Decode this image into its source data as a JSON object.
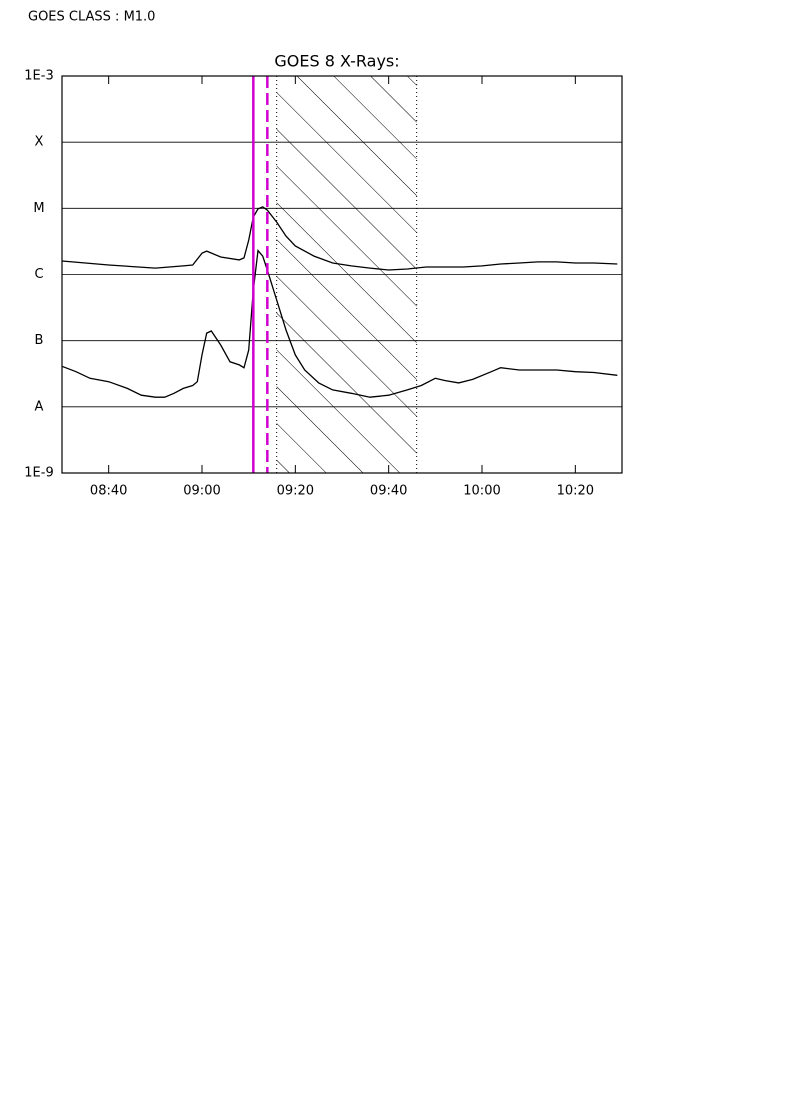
{
  "chart_data": {
    "type": "line",
    "annotation": "GOES CLASS : M1.0",
    "title": "GOES 8 X-Rays:",
    "log_y": true,
    "grid": true,
    "xlim": [
      "08:30",
      "10:30"
    ],
    "xticks": [
      "08:40",
      "09:00",
      "09:20",
      "09:40",
      "10:00",
      "10:20"
    ],
    "ylim": [
      1e-09,
      0.001
    ],
    "yticks": [
      {
        "value": 0.001,
        "label": "1E-3"
      },
      {
        "value": 0.0001,
        "label": "X"
      },
      {
        "value": 1e-05,
        "label": "M"
      },
      {
        "value": 1e-06,
        "label": "C"
      },
      {
        "value": 1e-07,
        "label": "B"
      },
      {
        "value": 1e-08,
        "label": "A"
      },
      {
        "value": 1e-09,
        "label": "1E-9"
      }
    ],
    "markers": [
      {
        "x": "09:11",
        "style": "solid",
        "color": "#d100d1"
      },
      {
        "x": "09:14",
        "style": "dashed",
        "color": "#d100d1"
      }
    ],
    "shaded_range": [
      "09:16",
      "09:46"
    ],
    "series": [
      {
        "color": "#000000",
        "x": [
          "08:30",
          "08:40",
          "08:50",
          "08:56",
          "08:58",
          "09:00",
          "09:01",
          "09:04",
          "09:08",
          "09:09",
          "09:10",
          "09:11",
          "09:12",
          "09:13",
          "09:14",
          "09:16",
          "09:18",
          "09:20",
          "09:24",
          "09:28",
          "09:32",
          "09:36",
          "09:40",
          "09:44",
          "09:48",
          "09:52",
          "09:56",
          "10:00",
          "10:04",
          "10:08",
          "10:12",
          "10:16",
          "10:20",
          "10:24",
          "10:29"
        ],
        "values": [
          1.6e-06,
          1.39e-06,
          1.25e-06,
          1.35e-06,
          1.39e-06,
          2.1e-06,
          2.26e-06,
          1.84e-06,
          1.66e-06,
          1.78e-06,
          3.3e-06,
          7.4e-06,
          9.8e-06,
          1.05e-05,
          9.4e-06,
          6.2e-06,
          3.8e-06,
          2.7e-06,
          1.9e-06,
          1.49e-06,
          1.35e-06,
          1.25e-06,
          1.17e-06,
          1.21e-06,
          1.3e-06,
          1.3e-06,
          1.3e-06,
          1.35e-06,
          1.44e-06,
          1.49e-06,
          1.55e-06,
          1.55e-06,
          1.49e-06,
          1.49e-06,
          1.44e-06
        ]
      },
      {
        "color": "#000000",
        "x": [
          "08:30",
          "08:33",
          "08:36",
          "08:40",
          "08:44",
          "08:47",
          "08:50",
          "08:52",
          "08:54",
          "08:56",
          "08:58",
          "08:59",
          "09:00",
          "09:01",
          "09:02",
          "09:04",
          "09:06",
          "09:08",
          "09:09",
          "09:10",
          "09:11",
          "09:12",
          "09:13",
          "09:14",
          "09:16",
          "09:18",
          "09:20",
          "09:22",
          "09:25",
          "09:28",
          "09:32",
          "09:36",
          "09:40",
          "09:44",
          "09:47",
          "09:50",
          "09:52",
          "09:55",
          "09:58",
          "10:02",
          "10:04",
          "10:08",
          "10:12",
          "10:16",
          "10:20",
          "10:24",
          "10:29"
        ],
        "values": [
          4.1e-08,
          3.4e-08,
          2.7e-08,
          2.4e-08,
          1.9e-08,
          1.5e-08,
          1.4e-08,
          1.4e-08,
          1.6e-08,
          1.9e-08,
          2.1e-08,
          2.4e-08,
          6.1e-08,
          1.3e-07,
          1.4e-07,
          8.6e-08,
          4.8e-08,
          4.3e-08,
          3.9e-08,
          7.2e-08,
          5.8e-07,
          2.3e-06,
          1.9e-06,
          1.17e-06,
          4.1e-07,
          1.45e-07,
          6.1e-08,
          3.6e-08,
          2.3e-08,
          1.8e-08,
          1.6e-08,
          1.4e-08,
          1.5e-08,
          1.8e-08,
          2.1e-08,
          2.7e-08,
          2.5e-08,
          2.3e-08,
          2.6e-08,
          3.4e-08,
          3.9e-08,
          3.6e-08,
          3.6e-08,
          3.6e-08,
          3.4e-08,
          3.3e-08,
          3e-08
        ]
      }
    ]
  }
}
